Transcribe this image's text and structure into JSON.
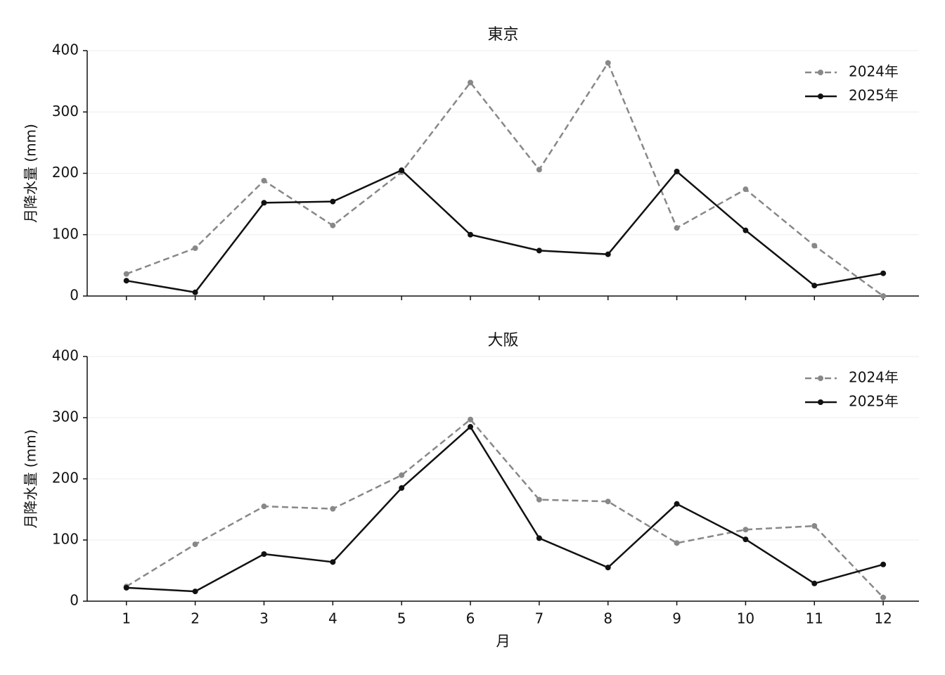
{
  "chart_data": [
    {
      "type": "line",
      "title": "東京",
      "ylabel": "月降水量 (mm)",
      "x": [
        1,
        2,
        3,
        4,
        5,
        6,
        7,
        8,
        9,
        10,
        11,
        12
      ],
      "series": [
        {
          "name": "2024年",
          "color": "#888888",
          "dash": true,
          "values": [
            36,
            78,
            188,
            115,
            202,
            348,
            206,
            380,
            111,
            174,
            82,
            0
          ]
        },
        {
          "name": "2025年",
          "color": "#111111",
          "dash": false,
          "values": [
            25,
            6,
            152,
            154,
            205,
            100,
            74,
            68,
            203,
            107,
            17,
            37
          ]
        }
      ],
      "xlim": [
        0.43,
        12.52
      ],
      "xticks": [
        1,
        2,
        3,
        4,
        5,
        6,
        7,
        8,
        9,
        10,
        11,
        12
      ],
      "ylim": [
        0,
        400
      ],
      "yticks": [
        0,
        100,
        200,
        300,
        400
      ],
      "grid": true,
      "legend": "upper right"
    },
    {
      "type": "line",
      "title": "大阪",
      "ylabel": "月降水量 (mm)",
      "xlabel": "月",
      "x": [
        1,
        2,
        3,
        4,
        5,
        6,
        7,
        8,
        9,
        10,
        11,
        12
      ],
      "series": [
        {
          "name": "2024年",
          "color": "#888888",
          "dash": true,
          "values": [
            24,
            93,
            155,
            151,
            206,
            297,
            166,
            163,
            95,
            117,
            123,
            6
          ]
        },
        {
          "name": "2025年",
          "color": "#111111",
          "dash": false,
          "values": [
            22,
            16,
            77,
            64,
            185,
            285,
            103,
            55,
            159,
            101,
            29,
            60
          ]
        }
      ],
      "xlim": [
        0.43,
        12.52
      ],
      "xticks": [
        1,
        2,
        3,
        4,
        5,
        6,
        7,
        8,
        9,
        10,
        11,
        12
      ],
      "ylim": [
        0,
        400
      ],
      "yticks": [
        0,
        100,
        200,
        300,
        400
      ],
      "grid": true,
      "legend": "upper right"
    }
  ]
}
